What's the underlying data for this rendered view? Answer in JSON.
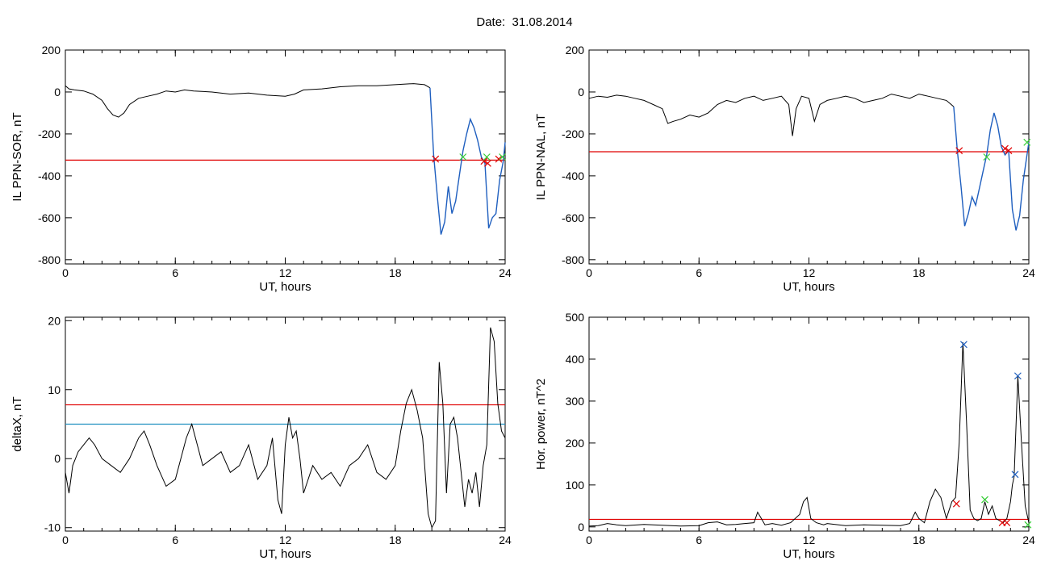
{
  "page": {
    "title": "Date:  31.08.2014"
  },
  "chart_data": [
    {
      "id": "il-ppn-sor",
      "type": "line",
      "xlabel": "UT, hours",
      "ylabel": "IL PPN-SOR, nT",
      "xlim": [
        0,
        24
      ],
      "ylim": [
        -820,
        200
      ],
      "xticks": [
        "0",
        "6",
        "12",
        "18",
        "24"
      ],
      "yticks": [
        "200",
        "0",
        "-200",
        "-400",
        "-600",
        "-800"
      ],
      "threshold": {
        "value": -325,
        "color": "#e00000"
      },
      "main_color": "#000000",
      "highlight_color": "#1f5fbf",
      "series": [
        {
          "role": "main",
          "x": [
            0,
            0.2,
            0.5,
            1,
            1.5,
            2,
            2.3,
            2.6,
            2.9,
            3.2,
            3.5,
            4,
            4.5,
            5,
            5.5,
            6,
            6.5,
            7,
            8,
            9,
            10,
            11,
            12,
            12.5,
            13,
            14,
            15,
            16,
            17,
            18,
            19,
            19.6,
            19.9
          ],
          "y": [
            30,
            15,
            10,
            5,
            -10,
            -40,
            -80,
            -110,
            -120,
            -100,
            -60,
            -30,
            -20,
            -10,
            5,
            0,
            10,
            5,
            0,
            -10,
            -5,
            -15,
            -20,
            -10,
            10,
            15,
            25,
            30,
            30,
            35,
            40,
            35,
            20
          ]
        },
        {
          "role": "highlight",
          "x": [
            19.9,
            20.1,
            20.3,
            20.5,
            20.7,
            20.9,
            21.1,
            21.3,
            21.5,
            21.7,
            21.9,
            22.1,
            22.3,
            22.5,
            22.7,
            22.9,
            23.1,
            23.3,
            23.5,
            23.7,
            23.9,
            24
          ],
          "y": [
            20,
            -300,
            -500,
            -680,
            -620,
            -450,
            -580,
            -520,
            -400,
            -280,
            -200,
            -130,
            -170,
            -230,
            -310,
            -340,
            -650,
            -600,
            -580,
            -420,
            -330,
            -240
          ]
        }
      ],
      "markers": [
        {
          "x": 20.2,
          "y": -320,
          "color": "#e00000"
        },
        {
          "x": 21.7,
          "y": -310,
          "color": "#33cc33"
        },
        {
          "x": 22.85,
          "y": -330,
          "color": "#e00000"
        },
        {
          "x": 23.0,
          "y": -310,
          "color": "#33cc33"
        },
        {
          "x": 23.05,
          "y": -340,
          "color": "#e00000"
        },
        {
          "x": 23.65,
          "y": -320,
          "color": "#e00000"
        },
        {
          "x": 23.85,
          "y": -310,
          "color": "#33cc33"
        }
      ]
    },
    {
      "id": "il-ppn-nal",
      "type": "line",
      "xlabel": "UT, hours",
      "ylabel": "IL PPN-NAL, nT",
      "xlim": [
        0,
        24
      ],
      "ylim": [
        -820,
        200
      ],
      "xticks": [
        "0",
        "6",
        "12",
        "18",
        "24"
      ],
      "yticks": [
        "200",
        "0",
        "-200",
        "-400",
        "-600",
        "-800"
      ],
      "threshold": {
        "value": -285,
        "color": "#e00000"
      },
      "main_color": "#000000",
      "highlight_color": "#1f5fbf",
      "series": [
        {
          "role": "main",
          "x": [
            0,
            0.5,
            1,
            1.5,
            2,
            2.5,
            3,
            3.5,
            4,
            4.3,
            4.6,
            5,
            5.5,
            6,
            6.5,
            7,
            7.5,
            8,
            8.5,
            9,
            9.5,
            10,
            10.5,
            10.9,
            11.1,
            11.3,
            11.6,
            12,
            12.3,
            12.6,
            13,
            13.5,
            14,
            14.5,
            15,
            15.5,
            16,
            16.5,
            17,
            17.5,
            18,
            18.5,
            19,
            19.5,
            19.9
          ],
          "y": [
            -30,
            -20,
            -25,
            -15,
            -20,
            -30,
            -40,
            -60,
            -80,
            -150,
            -140,
            -130,
            -110,
            -120,
            -100,
            -60,
            -40,
            -50,
            -30,
            -20,
            -40,
            -30,
            -20,
            -60,
            -210,
            -80,
            -20,
            -30,
            -140,
            -60,
            -40,
            -30,
            -20,
            -30,
            -50,
            -40,
            -30,
            -10,
            -20,
            -30,
            -10,
            -20,
            -30,
            -40,
            -70
          ]
        },
        {
          "role": "highlight",
          "x": [
            19.9,
            20.1,
            20.3,
            20.5,
            20.7,
            20.9,
            21.1,
            21.3,
            21.5,
            21.7,
            21.9,
            22.1,
            22.3,
            22.5,
            22.7,
            22.9,
            23.1,
            23.3,
            23.5,
            23.7,
            24
          ],
          "y": [
            -70,
            -280,
            -450,
            -640,
            -580,
            -500,
            -540,
            -460,
            -380,
            -300,
            -180,
            -100,
            -160,
            -260,
            -300,
            -280,
            -560,
            -660,
            -590,
            -420,
            -240
          ]
        }
      ],
      "markers": [
        {
          "x": 20.2,
          "y": -280,
          "color": "#e00000"
        },
        {
          "x": 21.7,
          "y": -310,
          "color": "#33cc33"
        },
        {
          "x": 22.7,
          "y": -270,
          "color": "#e00000"
        },
        {
          "x": 22.9,
          "y": -280,
          "color": "#e00000"
        },
        {
          "x": 23.9,
          "y": -240,
          "color": "#33cc33"
        }
      ]
    },
    {
      "id": "deltax",
      "type": "line",
      "xlabel": "UT, hours",
      "ylabel": "deltaX, nT",
      "xlim": [
        0,
        24
      ],
      "ylim": [
        -10.5,
        20.5
      ],
      "xticks": [
        "0",
        "6",
        "12",
        "18",
        "24"
      ],
      "yticks": [
        "20",
        "10",
        "0",
        "-10"
      ],
      "thresholds": [
        {
          "value": 7.8,
          "color": "#e00000"
        },
        {
          "value": 5.0,
          "color": "#1f8fbf"
        }
      ],
      "main_color": "#000000",
      "series": [
        {
          "role": "main",
          "x": [
            0,
            0.2,
            0.4,
            0.7,
            1,
            1.3,
            1.6,
            2,
            2.5,
            3,
            3.5,
            4,
            4.3,
            4.6,
            5,
            5.5,
            6,
            6.3,
            6.6,
            6.9,
            7.2,
            7.5,
            8,
            8.5,
            9,
            9.5,
            10,
            10.5,
            11,
            11.3,
            11.6,
            11.8,
            12,
            12.2,
            12.4,
            12.6,
            12.8,
            13,
            13.5,
            14,
            14.5,
            15,
            15.5,
            16,
            16.5,
            17,
            17.5,
            18,
            18.3,
            18.6,
            18.9,
            19.2,
            19.5,
            19.8,
            20,
            20.2,
            20.4,
            20.6,
            20.8,
            21,
            21.2,
            21.4,
            21.6,
            21.8,
            22,
            22.2,
            22.4,
            22.6,
            22.8,
            23,
            23.2,
            23.4,
            23.6,
            23.8,
            24
          ],
          "y": [
            -2,
            -5,
            -1,
            1,
            2,
            3,
            2,
            0,
            -1,
            -2,
            0,
            3,
            4,
            2,
            -1,
            -4,
            -3,
            0,
            3,
            5,
            2,
            -1,
            0,
            1,
            -2,
            -1,
            2,
            -3,
            -1,
            3,
            -6,
            -8,
            2,
            6,
            3,
            4,
            0,
            -5,
            -1,
            -3,
            -2,
            -4,
            -1,
            0,
            2,
            -2,
            -3,
            -1,
            4,
            8,
            10,
            7,
            3,
            -8,
            -10,
            -9,
            14,
            8,
            -5,
            5,
            6,
            3,
            -2,
            -7,
            -3,
            -5,
            -2,
            -7,
            -1,
            2,
            19,
            17,
            8,
            4,
            3
          ]
        }
      ]
    },
    {
      "id": "hor-power",
      "type": "line",
      "xlabel": "UT, hours",
      "ylabel": "Hor. power, nT^2",
      "xlim": [
        0,
        24
      ],
      "ylim": [
        -10,
        500
      ],
      "xticks": [
        "0",
        "6",
        "12",
        "18",
        "24"
      ],
      "yticks": [
        "500",
        "400",
        "300",
        "200",
        "100",
        "0"
      ],
      "threshold": {
        "value": 18,
        "color": "#e00000"
      },
      "main_color": "#000000",
      "series": [
        {
          "role": "main",
          "x": [
            0,
            0.5,
            1,
            1.5,
            2,
            3,
            4,
            5,
            6,
            6.5,
            7,
            7.5,
            8,
            8.5,
            9,
            9.2,
            9.4,
            9.6,
            10,
            10.5,
            11,
            11.5,
            11.7,
            11.9,
            12.1,
            12.4,
            12.8,
            13,
            14,
            15,
            16,
            17,
            17.5,
            17.8,
            18,
            18.3,
            18.6,
            18.9,
            19.2,
            19.5,
            19.8,
            20,
            20.2,
            20.4,
            20.6,
            20.8,
            21,
            21.2,
            21.4,
            21.6,
            21.8,
            22,
            22.2,
            22.4,
            22.6,
            22.8,
            23,
            23.1,
            23.2,
            23.4,
            23.6,
            23.8,
            24
          ],
          "y": [
            2,
            3,
            8,
            5,
            3,
            6,
            4,
            2,
            3,
            10,
            12,
            5,
            6,
            8,
            10,
            35,
            20,
            5,
            8,
            4,
            10,
            30,
            60,
            70,
            20,
            10,
            5,
            8,
            3,
            5,
            4,
            3,
            8,
            35,
            20,
            10,
            60,
            90,
            70,
            20,
            60,
            70,
            200,
            440,
            250,
            40,
            20,
            15,
            20,
            60,
            30,
            50,
            20,
            15,
            10,
            20,
            60,
            100,
            120,
            360,
            200,
            50,
            10
          ]
        }
      ],
      "markers": [
        {
          "x": 20.05,
          "y": 55,
          "color": "#e00000"
        },
        {
          "x": 20.45,
          "y": 435,
          "color": "#1f5fbf"
        },
        {
          "x": 21.6,
          "y": 65,
          "color": "#33cc33"
        },
        {
          "x": 22.55,
          "y": 10,
          "color": "#e00000"
        },
        {
          "x": 22.8,
          "y": 10,
          "color": "#e00000"
        },
        {
          "x": 23.25,
          "y": 125,
          "color": "#1f5fbf"
        },
        {
          "x": 23.4,
          "y": 360,
          "color": "#1f5fbf"
        },
        {
          "x": 23.95,
          "y": 5,
          "color": "#33cc33"
        }
      ]
    }
  ]
}
